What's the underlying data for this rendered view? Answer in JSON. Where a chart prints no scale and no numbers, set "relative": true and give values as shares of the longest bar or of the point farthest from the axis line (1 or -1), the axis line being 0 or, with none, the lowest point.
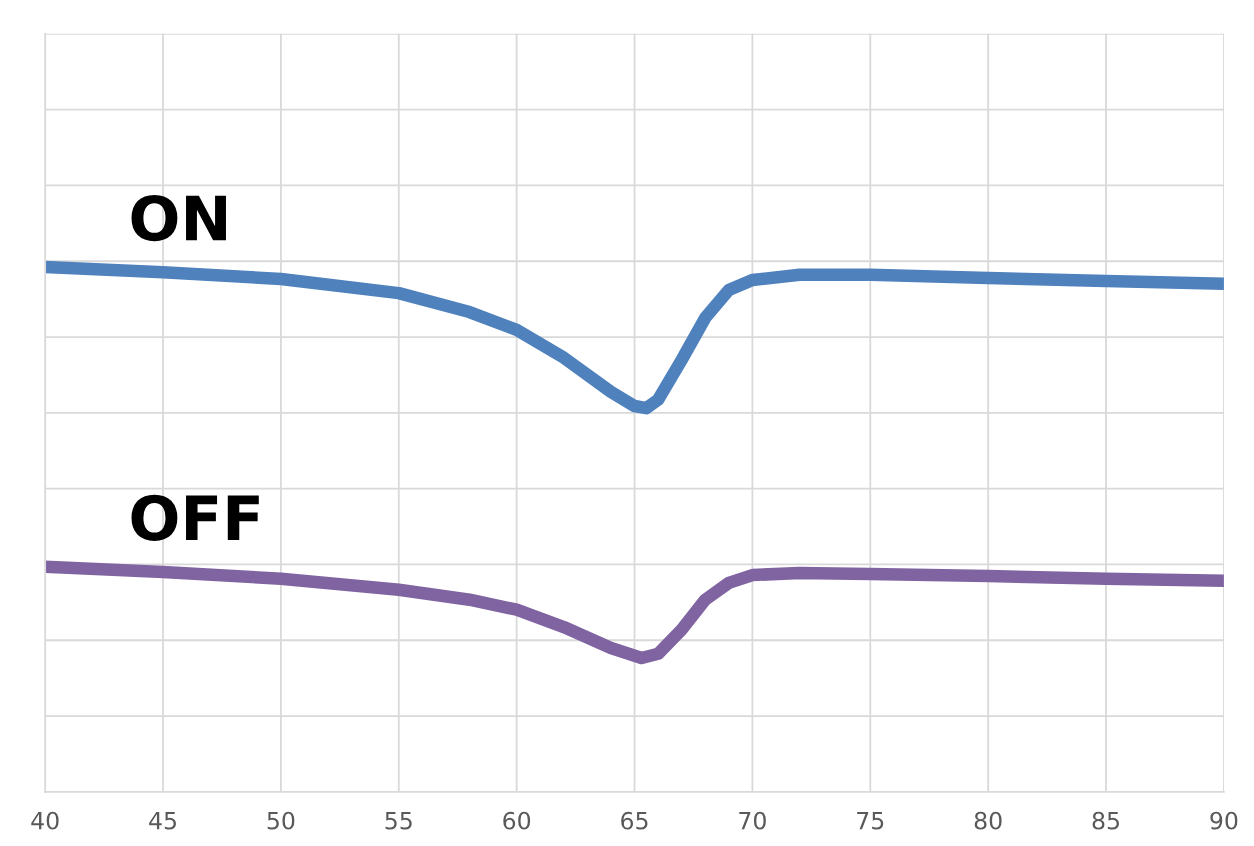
{
  "chart_data": {
    "type": "line",
    "relative": true,
    "tick_labels": "x",
    "grid": true,
    "legend": false,
    "marker": "none",
    "line_style": "solid",
    "xlim": [
      40,
      90
    ],
    "xticks": [
      40,
      45,
      50,
      55,
      60,
      65,
      70,
      75,
      80,
      85,
      90
    ],
    "series": [
      {
        "name": "ON",
        "color": "#4f81bd",
        "x": [
          40,
          45,
          50,
          55,
          58,
          60,
          62,
          64,
          65,
          65.5,
          66,
          67,
          68,
          69,
          70,
          72,
          75,
          80,
          85,
          90
        ],
        "values": [
          1.0,
          0.99,
          0.977,
          0.95,
          0.914,
          0.88,
          0.827,
          0.762,
          0.735,
          0.731,
          0.747,
          0.823,
          0.903,
          0.956,
          0.975,
          0.985,
          0.985,
          0.979,
          0.973,
          0.968
        ]
      },
      {
        "name": "OFF",
        "color": "#8064a2",
        "x": [
          40,
          45,
          50,
          55,
          58,
          60,
          62,
          64,
          65.3,
          66,
          67,
          68,
          69,
          70,
          72,
          75,
          80,
          85,
          90
        ],
        "values": [
          0.429,
          0.419,
          0.406,
          0.385,
          0.366,
          0.347,
          0.314,
          0.274,
          0.255,
          0.263,
          0.309,
          0.366,
          0.398,
          0.413,
          0.417,
          0.415,
          0.411,
          0.406,
          0.402
        ]
      }
    ]
  }
}
